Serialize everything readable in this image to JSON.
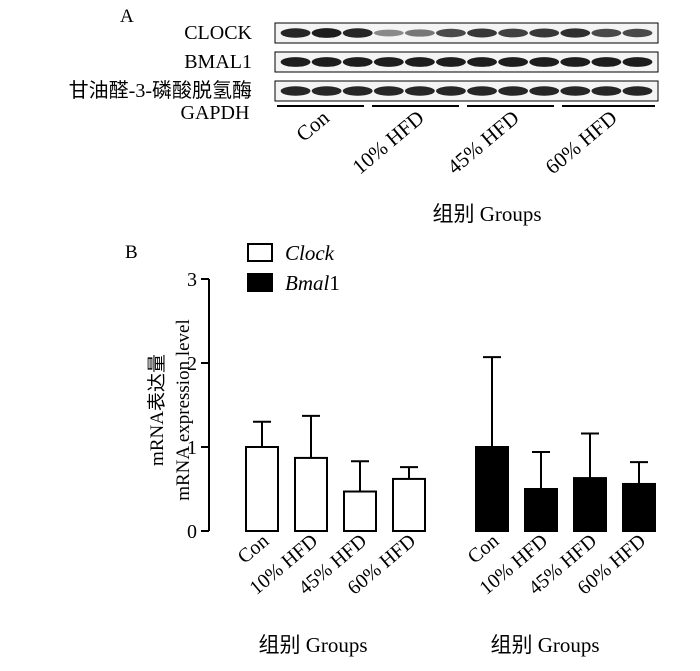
{
  "panel_a": {
    "label": "A",
    "bands": [
      {
        "name": "CLOCK",
        "label": "CLOCK",
        "label2": "",
        "lanes": [
          0.9,
          0.95,
          0.9,
          0.35,
          0.45,
          0.7,
          0.8,
          0.75,
          0.8,
          0.85,
          0.7,
          0.7
        ]
      },
      {
        "name": "BMAL1",
        "label": "BMAL1",
        "label2": "",
        "lanes": [
          0.95,
          0.95,
          0.95,
          0.95,
          0.95,
          0.95,
          0.95,
          0.95,
          0.95,
          0.95,
          0.95,
          0.95
        ]
      },
      {
        "name": "GAPDH",
        "label": "甘油醛-3-磷酸脱氢酶",
        "label2": "GAPDH",
        "lanes": [
          0.9,
          0.9,
          0.9,
          0.9,
          0.9,
          0.9,
          0.9,
          0.9,
          0.9,
          0.9,
          0.9,
          0.9
        ]
      }
    ],
    "groups": [
      "Con",
      "10% HFD",
      "45% HFD",
      "60% HFD"
    ],
    "xlabel": "组别 Groups"
  },
  "panel_b": {
    "label": "B",
    "legend": [
      {
        "name": "Clock",
        "italic": "Clock",
        "suffix": "",
        "fill": "#ffffff"
      },
      {
        "name": "Bmal1",
        "italic": "Bmal",
        "suffix": "1",
        "fill": "#000000"
      }
    ],
    "ylabel_cn": "mRNA表达量",
    "ylabel_en": "mRNA expression level",
    "y_ticks": [
      "0",
      "1",
      "2",
      "3"
    ],
    "xlabel_left": "组别 Groups",
    "xlabel_right": "组别 Groups"
  },
  "chart_data": {
    "type": "bar",
    "title": "",
    "ylabel": "mRNA表达量 mRNA expression level",
    "ylim": [
      0,
      3
    ],
    "grid": false,
    "legend_position": "top-left",
    "groups": [
      {
        "series": "Clock",
        "categories": [
          "Con",
          "10% HFD",
          "45% HFD",
          "60% HFD"
        ],
        "values": [
          1.0,
          0.87,
          0.47,
          0.62
        ],
        "errors": [
          0.3,
          0.5,
          0.36,
          0.14
        ]
      },
      {
        "series": "Bmal1",
        "categories": [
          "Con",
          "10% HFD",
          "45% HFD",
          "60% HFD"
        ],
        "values": [
          1.0,
          0.5,
          0.63,
          0.56
        ],
        "errors": [
          1.07,
          0.44,
          0.53,
          0.26
        ]
      }
    ],
    "colors": {
      "Clock": "#ffffff",
      "Bmal1": "#000000"
    }
  }
}
